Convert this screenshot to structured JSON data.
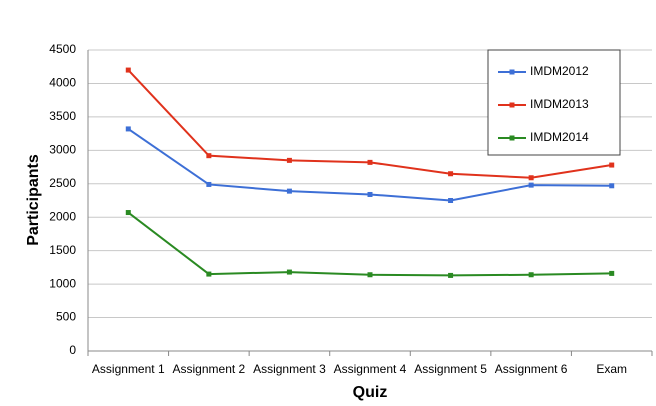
{
  "chart_data": {
    "type": "line",
    "categories": [
      "Assignment 1",
      "Assignment 2",
      "Assignment 3",
      "Assignment 4",
      "Assignment 5",
      "Assignment 6",
      "Exam"
    ],
    "series": [
      {
        "name": "IMDM2012",
        "color": "#3d6fd6",
        "values": [
          3320,
          2490,
          2390,
          2340,
          2250,
          2480,
          2470
        ]
      },
      {
        "name": "IMDM2013",
        "color": "#e0321c",
        "values": [
          4200,
          2920,
          2850,
          2820,
          2650,
          2590,
          2780
        ]
      },
      {
        "name": "IMDM2014",
        "color": "#2a8a22",
        "values": [
          2070,
          1150,
          1180,
          1140,
          1130,
          1140,
          1160
        ]
      }
    ],
    "ylim": [
      0,
      4500
    ],
    "yticks": [
      0,
      500,
      1000,
      1500,
      2000,
      2500,
      3000,
      3500,
      4000,
      4500
    ],
    "xlabel": "Quiz",
    "ylabel": "Participants",
    "grid": true,
    "legend": "upper right"
  }
}
